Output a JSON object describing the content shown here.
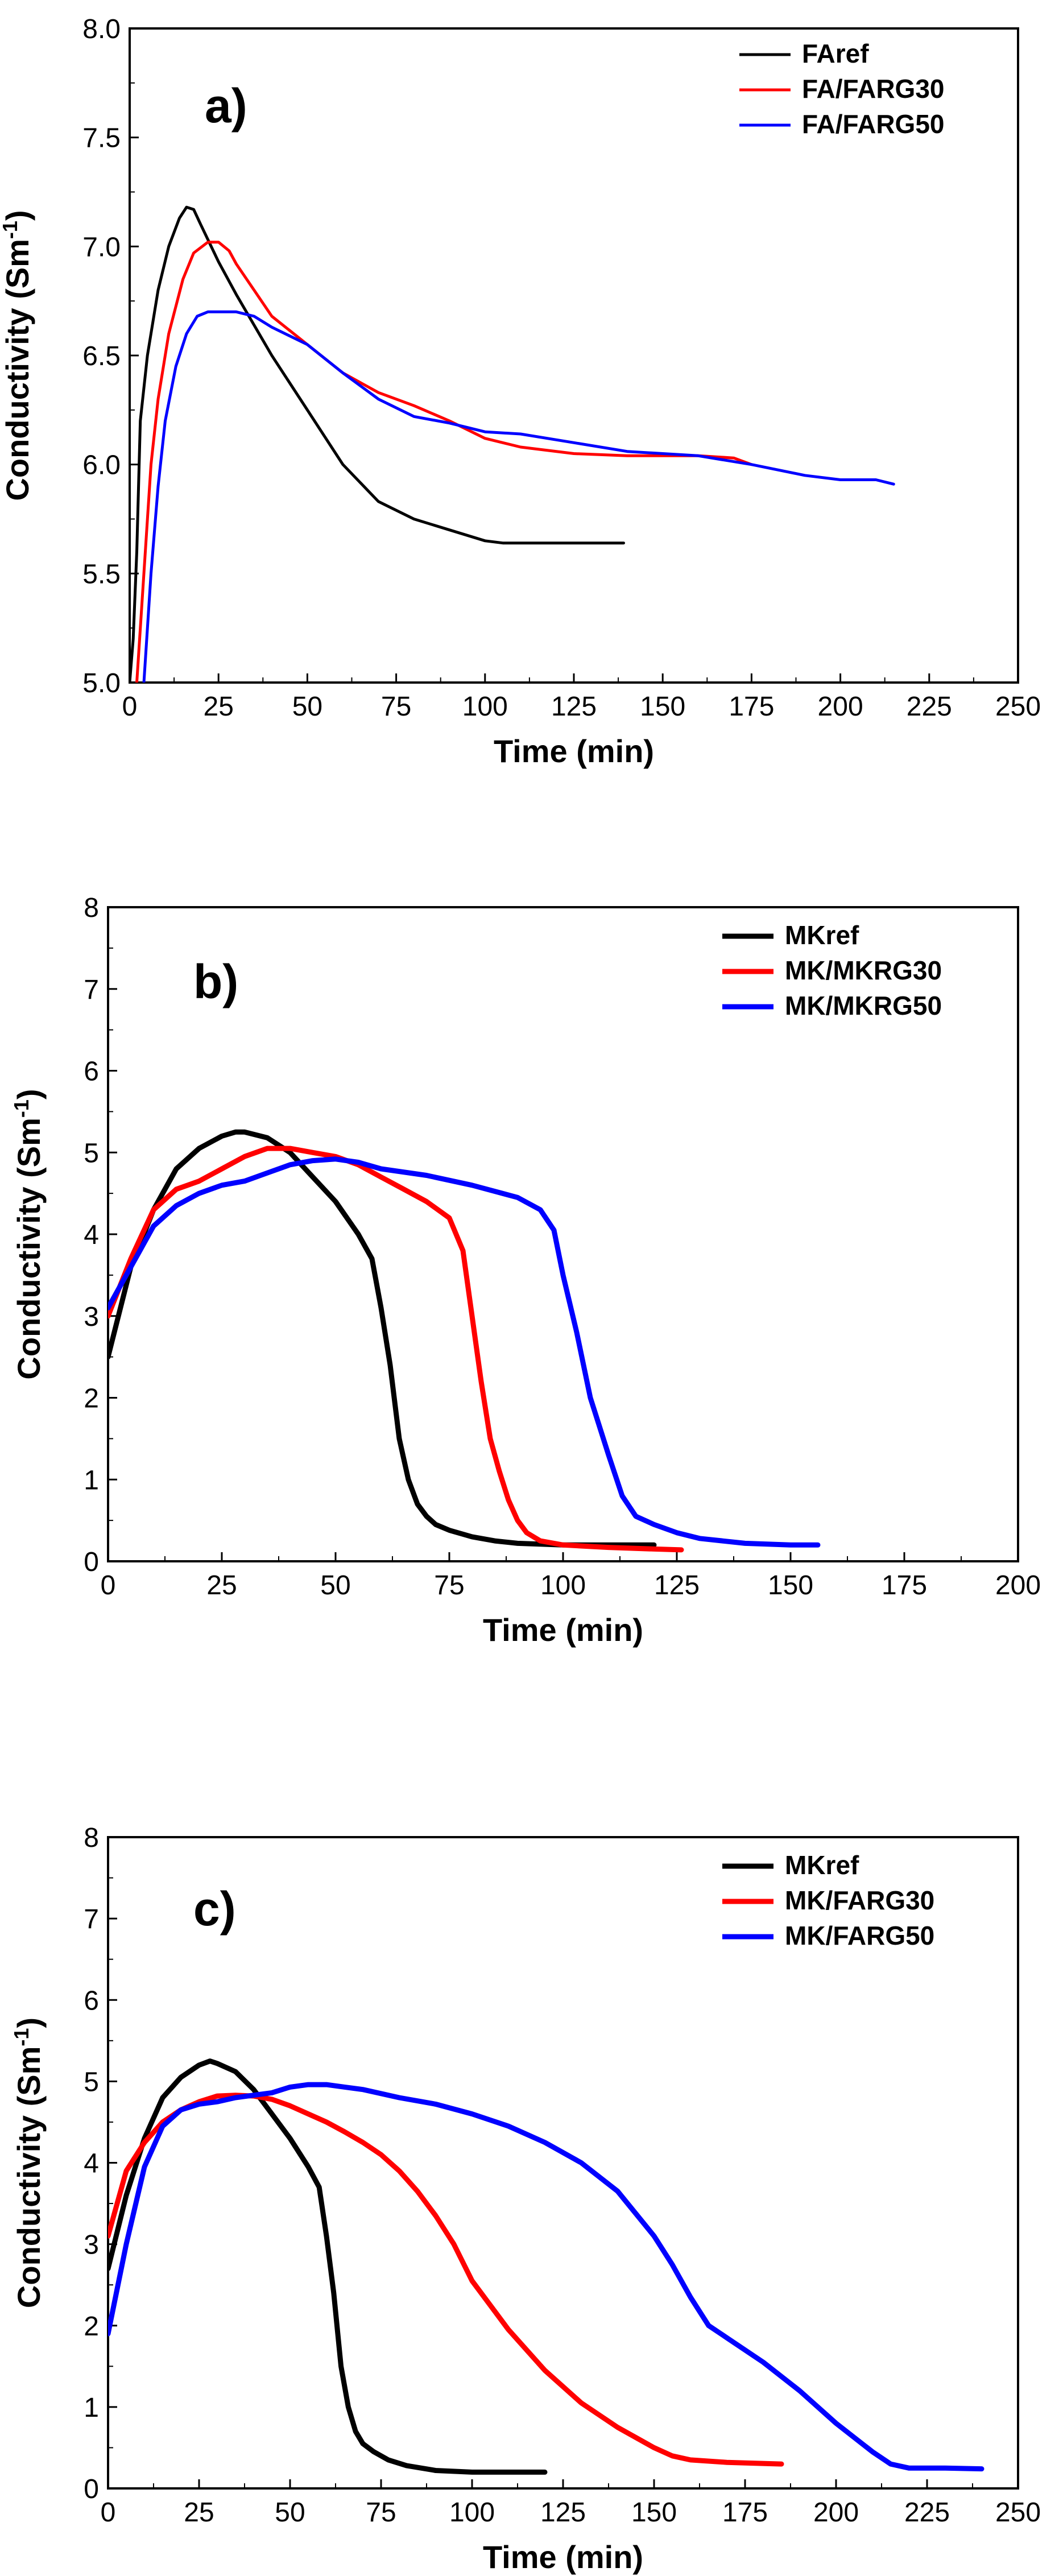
{
  "chart_data": [
    {
      "type": "line",
      "panel_label": "a)",
      "xlabel": "Time (min)",
      "ylabel": "Conductivity (Sm",
      "ylabel_sup": "-1",
      "ylabel_end": ")",
      "xlim": [
        0,
        250
      ],
      "ylim": [
        5.0,
        8.0
      ],
      "xticks": [
        0,
        25,
        50,
        75,
        100,
        125,
        150,
        175,
        200,
        225,
        250
      ],
      "yticks": [
        5.0,
        5.5,
        6.0,
        6.5,
        7.0,
        7.5,
        8.0
      ],
      "ytick_labels": [
        "5.0",
        "5.5",
        "6.0",
        "6.5",
        "7.0",
        "7.5",
        "8.0"
      ],
      "grid": false,
      "legend_position": "top-right",
      "series": [
        {
          "name": "FAref",
          "color": "#000000",
          "x": [
            0,
            1,
            2,
            3,
            5,
            8,
            11,
            14,
            16,
            18,
            20,
            25,
            30,
            40,
            50,
            60,
            70,
            80,
            90,
            100,
            105,
            110,
            120,
            130,
            139
          ],
          "y": [
            5.0,
            5.2,
            5.6,
            6.2,
            6.5,
            6.8,
            7.0,
            7.13,
            7.18,
            7.17,
            7.1,
            6.93,
            6.78,
            6.5,
            6.25,
            6.0,
            5.83,
            5.75,
            5.7,
            5.65,
            5.64,
            5.64,
            5.64,
            5.64,
            5.64
          ]
        },
        {
          "name": "FA/FARG30",
          "color": "#ff0000",
          "x": [
            2,
            4,
            6,
            8,
            11,
            15,
            18,
            22,
            25,
            28,
            30,
            35,
            40,
            50,
            60,
            70,
            80,
            90,
            100,
            110,
            125,
            140,
            150,
            160,
            170,
            175
          ],
          "y": [
            5.0,
            5.5,
            6.0,
            6.3,
            6.6,
            6.85,
            6.97,
            7.02,
            7.02,
            6.98,
            6.92,
            6.8,
            6.68,
            6.55,
            6.42,
            6.33,
            6.27,
            6.2,
            6.12,
            6.08,
            6.05,
            6.04,
            6.04,
            6.04,
            6.03,
            6.0
          ]
        },
        {
          "name": "FA/FARG50",
          "color": "#0000ff",
          "x": [
            4,
            6,
            8,
            10,
            13,
            16,
            19,
            22,
            25,
            30,
            35,
            40,
            50,
            60,
            70,
            80,
            90,
            100,
            110,
            125,
            140,
            160,
            175,
            190,
            200,
            210,
            215
          ],
          "y": [
            5.0,
            5.5,
            5.9,
            6.2,
            6.45,
            6.6,
            6.68,
            6.7,
            6.7,
            6.7,
            6.68,
            6.63,
            6.55,
            6.42,
            6.3,
            6.22,
            6.19,
            6.15,
            6.14,
            6.1,
            6.06,
            6.04,
            6.0,
            5.95,
            5.93,
            5.93,
            5.91
          ]
        }
      ]
    },
    {
      "type": "line",
      "panel_label": "b)",
      "xlabel": "Time (min)",
      "ylabel": "Conductivity (Sm",
      "ylabel_sup": "-1",
      "ylabel_end": ")",
      "xlim": [
        0,
        200
      ],
      "ylim": [
        0,
        8
      ],
      "xticks": [
        0,
        25,
        50,
        75,
        100,
        125,
        150,
        175,
        200
      ],
      "yticks": [
        0,
        1,
        2,
        3,
        4,
        5,
        6,
        7,
        8
      ],
      "ytick_labels": [
        "0",
        "1",
        "2",
        "3",
        "4",
        "5",
        "6",
        "7",
        "8"
      ],
      "grid": false,
      "legend_position": "top-right",
      "series": [
        {
          "name": "MKref",
          "color": "#000000",
          "x": [
            0,
            5,
            10,
            15,
            20,
            25,
            28,
            30,
            35,
            40,
            45,
            50,
            55,
            58,
            60,
            62,
            64,
            66,
            68,
            70,
            72,
            75,
            80,
            85,
            90,
            100,
            110,
            120
          ],
          "y": [
            2.5,
            3.6,
            4.3,
            4.8,
            5.05,
            5.2,
            5.25,
            5.25,
            5.18,
            5.0,
            4.7,
            4.4,
            4.0,
            3.7,
            3.1,
            2.4,
            1.5,
            1.0,
            0.7,
            0.55,
            0.45,
            0.38,
            0.3,
            0.25,
            0.22,
            0.2,
            0.2,
            0.2
          ]
        },
        {
          "name": "MK/MKRG30",
          "color": "#ff0000",
          "x": [
            0,
            5,
            10,
            15,
            20,
            25,
            30,
            35,
            40,
            45,
            50,
            55,
            60,
            65,
            70,
            75,
            78,
            80,
            82,
            84,
            86,
            88,
            90,
            92,
            95,
            100,
            110,
            120,
            126
          ],
          "y": [
            3.0,
            3.7,
            4.3,
            4.55,
            4.65,
            4.8,
            4.95,
            5.05,
            5.05,
            5.0,
            4.95,
            4.85,
            4.7,
            4.55,
            4.4,
            4.2,
            3.8,
            3.0,
            2.2,
            1.5,
            1.1,
            0.75,
            0.5,
            0.35,
            0.25,
            0.2,
            0.17,
            0.15,
            0.14
          ]
        },
        {
          "name": "MK/MKRG50",
          "color": "#0000ff",
          "x": [
            0,
            5,
            10,
            15,
            20,
            25,
            30,
            35,
            40,
            45,
            50,
            55,
            60,
            70,
            80,
            90,
            95,
            98,
            100,
            103,
            106,
            110,
            113,
            116,
            120,
            125,
            130,
            140,
            150,
            156
          ],
          "y": [
            3.1,
            3.6,
            4.1,
            4.35,
            4.5,
            4.6,
            4.65,
            4.75,
            4.85,
            4.9,
            4.92,
            4.88,
            4.8,
            4.72,
            4.6,
            4.45,
            4.3,
            4.05,
            3.5,
            2.8,
            2.0,
            1.3,
            0.8,
            0.55,
            0.45,
            0.35,
            0.28,
            0.22,
            0.2,
            0.2
          ]
        }
      ]
    },
    {
      "type": "line",
      "panel_label": "c)",
      "xlabel": "Time (min)",
      "ylabel": "Conductivity (Sm",
      "ylabel_sup": "-1",
      "ylabel_end": ")",
      "xlim": [
        0,
        250
      ],
      "ylim": [
        0,
        8
      ],
      "xticks": [
        0,
        25,
        50,
        75,
        100,
        125,
        150,
        175,
        200,
        225,
        250
      ],
      "yticks": [
        0,
        1,
        2,
        3,
        4,
        5,
        6,
        7,
        8
      ],
      "ytick_labels": [
        "0",
        "1",
        "2",
        "3",
        "4",
        "5",
        "6",
        "7",
        "8"
      ],
      "grid": false,
      "legend_position": "top-right",
      "series": [
        {
          "name": "MKref",
          "color": "#000000",
          "x": [
            0,
            5,
            10,
            15,
            20,
            25,
            28,
            30,
            35,
            40,
            45,
            50,
            55,
            58,
            60,
            62,
            64,
            66,
            68,
            70,
            73,
            77,
            82,
            90,
            100,
            110,
            120
          ],
          "y": [
            2.7,
            3.6,
            4.3,
            4.8,
            5.05,
            5.2,
            5.25,
            5.22,
            5.12,
            4.9,
            4.6,
            4.3,
            3.95,
            3.7,
            3.1,
            2.4,
            1.5,
            1.0,
            0.7,
            0.55,
            0.45,
            0.35,
            0.28,
            0.22,
            0.2,
            0.2,
            0.2
          ]
        },
        {
          "name": "MK/FARG30",
          "color": "#ff0000",
          "x": [
            0,
            5,
            10,
            15,
            20,
            25,
            30,
            35,
            40,
            45,
            50,
            55,
            60,
            65,
            70,
            75,
            80,
            85,
            90,
            95,
            100,
            110,
            120,
            130,
            140,
            150,
            155,
            160,
            170,
            185
          ],
          "y": [
            3.1,
            3.9,
            4.25,
            4.5,
            4.65,
            4.75,
            4.82,
            4.83,
            4.82,
            4.78,
            4.7,
            4.6,
            4.5,
            4.38,
            4.25,
            4.1,
            3.9,
            3.65,
            3.35,
            3.0,
            2.55,
            1.95,
            1.45,
            1.05,
            0.75,
            0.5,
            0.4,
            0.35,
            0.32,
            0.3
          ]
        },
        {
          "name": "MK/FARG50",
          "color": "#0000ff",
          "x": [
            0,
            5,
            10,
            15,
            20,
            25,
            30,
            35,
            40,
            45,
            50,
            55,
            60,
            65,
            70,
            80,
            90,
            100,
            110,
            120,
            130,
            140,
            150,
            155,
            160,
            165,
            170,
            180,
            190,
            200,
            210,
            215,
            220,
            230,
            240
          ],
          "y": [
            1.9,
            3.0,
            3.95,
            4.45,
            4.65,
            4.72,
            4.75,
            4.8,
            4.83,
            4.86,
            4.93,
            4.96,
            4.96,
            4.93,
            4.9,
            4.8,
            4.72,
            4.6,
            4.45,
            4.25,
            4.0,
            3.65,
            3.1,
            2.75,
            2.35,
            2.0,
            1.85,
            1.55,
            1.2,
            0.8,
            0.45,
            0.3,
            0.25,
            0.25,
            0.24
          ]
        }
      ]
    }
  ]
}
